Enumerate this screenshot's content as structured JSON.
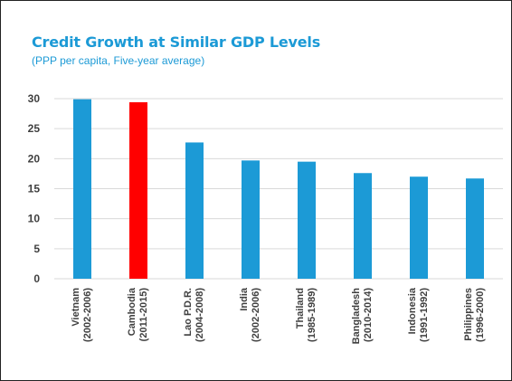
{
  "chart_data": {
    "type": "bar",
    "title": "Credit Growth at Similar GDP Levels",
    "subtitle": "(PPP per capita, Five-year average)",
    "xlabel": "",
    "ylabel": "",
    "ylim": [
      0,
      30
    ],
    "yticks": [
      0,
      5,
      10,
      15,
      20,
      25,
      30
    ],
    "grid": true,
    "categories": [
      [
        "Vietnam",
        "(2002-2006)"
      ],
      [
        "Cambodia",
        "(2011-2015)"
      ],
      [
        "Lao P.D.R.",
        "(2004-2008)"
      ],
      [
        "India",
        "(2002-2006)"
      ],
      [
        "Thailand",
        "(1985-1989)"
      ],
      [
        "Bangladesh",
        "(2010-2014)"
      ],
      [
        "Indonesia",
        "(1991-1992)"
      ],
      [
        "Philippines",
        "(1996-2000)"
      ]
    ],
    "values": [
      29.9,
      29.4,
      22.7,
      19.7,
      19.5,
      17.6,
      17.0,
      16.7
    ],
    "colors": [
      "#1c9ad6",
      "#ff0000",
      "#1c9ad6",
      "#1c9ad6",
      "#1c9ad6",
      "#1c9ad6",
      "#1c9ad6",
      "#1c9ad6"
    ],
    "gridColor": "#d9d9d9"
  }
}
